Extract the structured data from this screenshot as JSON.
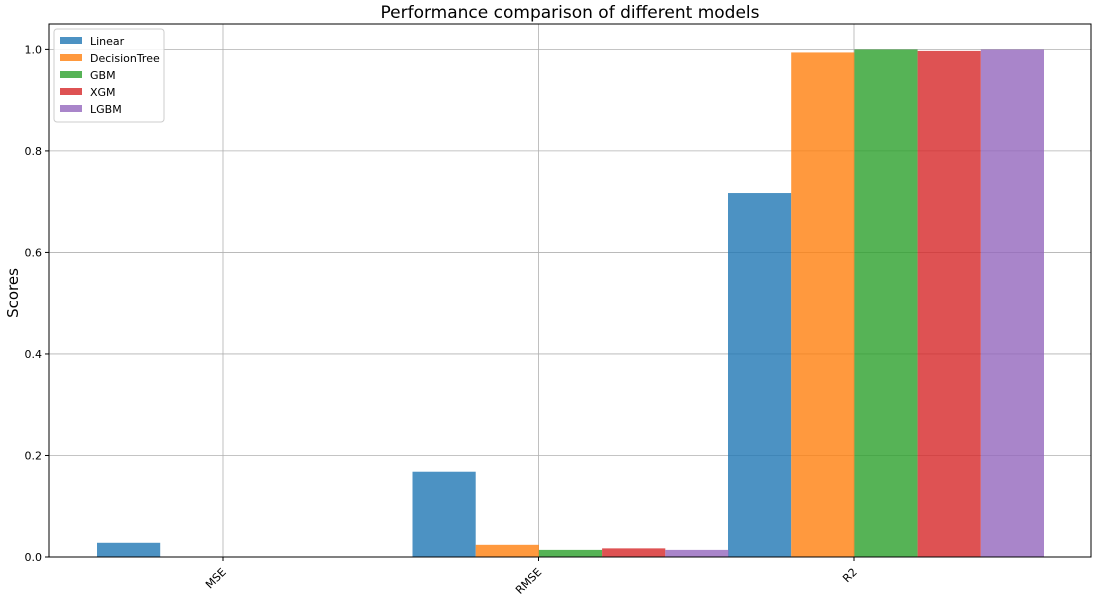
{
  "chart_data": {
    "type": "bar",
    "title": "Performance comparison of different models",
    "xlabel": "",
    "ylabel": "Scores",
    "categories": [
      "MSE",
      "RMSE",
      "R2"
    ],
    "ylim": [
      0,
      1.05
    ],
    "yticks": [
      "0.0",
      "0.2",
      "0.4",
      "0.6",
      "0.8",
      "1.0"
    ],
    "grid": true,
    "legend_position": "top-left",
    "series": [
      {
        "name": "Linear",
        "color": "#1f77b4",
        "values": [
          0.028,
          0.168,
          0.717
        ]
      },
      {
        "name": "DecisionTree",
        "color": "#ff7f0e",
        "values": [
          0.0006,
          0.024,
          0.994
        ]
      },
      {
        "name": "GBM",
        "color": "#2ca02c",
        "values": [
          0.0002,
          0.014,
          0.9998
        ]
      },
      {
        "name": "XGM",
        "color": "#d62728",
        "values": [
          0.0003,
          0.017,
          0.997
        ]
      },
      {
        "name": "LGBM",
        "color": "#9467bd",
        "values": [
          0.0002,
          0.014,
          0.9998
        ]
      }
    ]
  }
}
